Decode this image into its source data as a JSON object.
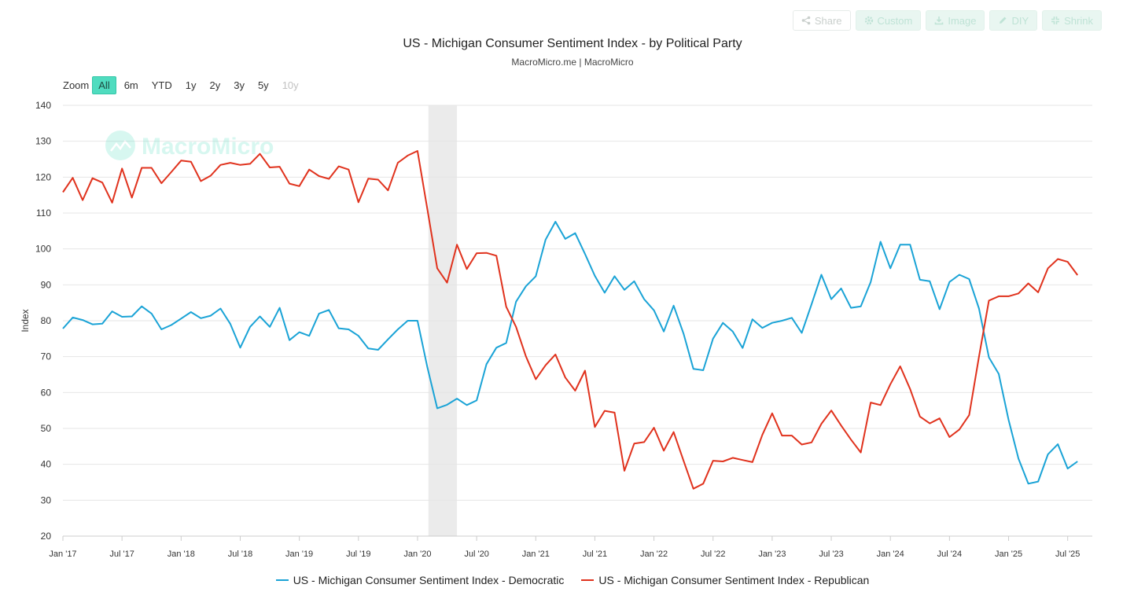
{
  "toolbar": {
    "share": "Share",
    "custom": "Custom",
    "image": "Image",
    "diy": "DIY",
    "shrink": "Shrink"
  },
  "zoom": {
    "label": "Zoom",
    "buttons": [
      "All",
      "6m",
      "YTD",
      "1y",
      "2y",
      "3y",
      "5y",
      "10y"
    ],
    "selected": "All",
    "disabled": [
      "10y"
    ]
  },
  "watermark": "MacroMicro",
  "colors": {
    "democratic": "#1aa3d6",
    "republican": "#e0321d",
    "recession": "#ebebeb",
    "grid": "#e6e6e6",
    "zoom_active": "#4fdcbf"
  },
  "chart_data": {
    "type": "line",
    "title": "US - Michigan Consumer Sentiment Index - by Political Party",
    "subtitle": "MacroMicro.me | MacroMicro",
    "ylabel": "Index",
    "xlabel": "",
    "ylim": [
      20,
      140
    ],
    "yticks": [
      20,
      30,
      40,
      50,
      60,
      70,
      80,
      90,
      100,
      110,
      120,
      130,
      140
    ],
    "xticks": [
      {
        "label": "Jan '17",
        "t": 0
      },
      {
        "label": "Jul '17",
        "t": 6
      },
      {
        "label": "Jan '18",
        "t": 12
      },
      {
        "label": "Jul '18",
        "t": 18
      },
      {
        "label": "Jan '19",
        "t": 24
      },
      {
        "label": "Jul '19",
        "t": 30
      },
      {
        "label": "Jan '20",
        "t": 36
      },
      {
        "label": "Jul '20",
        "t": 42
      },
      {
        "label": "Jan '21",
        "t": 48
      },
      {
        "label": "Jul '21",
        "t": 54
      },
      {
        "label": "Jan '22",
        "t": 60
      },
      {
        "label": "Jul '22",
        "t": 66
      },
      {
        "label": "Jan '23",
        "t": 72
      },
      {
        "label": "Jul '23",
        "t": 78
      },
      {
        "label": "Jan '24",
        "t": 84
      },
      {
        "label": "Jul '24",
        "t": 90
      },
      {
        "label": "Jan '25",
        "t": 96
      },
      {
        "label": "Jul '25",
        "t": 102
      }
    ],
    "x_range_months": [
      0,
      104.5
    ],
    "start_month": "2017-01",
    "recession_band": {
      "from": 37.1,
      "to": 40.0
    },
    "series": [
      {
        "name": "US - Michigan Consumer Sentiment Index - Democratic",
        "color": "#1aa3d6",
        "values": [
          77.8,
          80.9,
          80.2,
          79.0,
          79.2,
          82.6,
          81.1,
          81.2,
          84.0,
          82.0,
          77.6,
          78.8,
          80.6,
          82.4,
          80.7,
          81.4,
          83.4,
          79.1,
          72.5,
          78.3,
          81.2,
          78.3,
          83.6,
          74.6,
          76.8,
          75.8,
          82.0,
          83.0,
          77.9,
          77.6,
          75.8,
          72.3,
          71.9,
          74.8,
          77.6,
          80.0,
          80.0,
          67.0,
          55.6,
          56.6,
          58.3,
          56.5,
          57.8,
          67.9,
          72.5,
          73.8,
          85.3,
          89.6,
          92.4,
          102.6,
          107.6,
          102.8,
          104.4,
          98.6,
          92.5,
          87.8,
          92.4,
          88.6,
          91.0,
          86.0,
          82.9,
          77.0,
          84.2,
          76.4,
          66.6,
          66.2,
          75.0,
          79.4,
          77.0,
          72.4,
          80.4,
          78.0,
          79.4,
          80.0,
          80.8,
          76.6,
          84.6,
          92.8,
          86.0,
          89.0,
          83.6,
          84.0,
          90.8,
          102.0,
          94.6,
          101.2,
          101.2,
          91.4,
          91.0,
          83.2,
          90.8,
          92.8,
          91.6,
          83.4,
          69.8,
          65.2,
          52.4,
          41.6,
          34.6,
          35.2,
          42.8,
          45.6,
          38.8,
          40.8
        ]
      },
      {
        "name": "US - Michigan Consumer Sentiment Index - Republican",
        "color": "#e0321d",
        "values": [
          115.8,
          119.8,
          113.6,
          119.7,
          118.5,
          112.9,
          122.4,
          114.3,
          122.6,
          122.6,
          118.3,
          121.4,
          124.6,
          124.3,
          118.9,
          120.4,
          123.4,
          124.0,
          123.4,
          123.7,
          126.5,
          122.7,
          122.9,
          118.2,
          117.5,
          122.1,
          120.3,
          119.5,
          123.0,
          122.1,
          113.0,
          119.6,
          119.3,
          116.3,
          124.0,
          126.0,
          127.3,
          111.0,
          94.6,
          90.6,
          101.2,
          94.4,
          98.8,
          98.9,
          98.1,
          83.9,
          78.3,
          70.1,
          63.7,
          67.6,
          70.6,
          64.2,
          60.5,
          66.1,
          50.4,
          54.9,
          54.4,
          38.2,
          45.8,
          46.2,
          50.2,
          43.8,
          49.0,
          41.0,
          33.2,
          34.6,
          41.0,
          40.8,
          41.8,
          41.2,
          40.6,
          48.2,
          54.2,
          48.0,
          48.0,
          45.5,
          46.1,
          51.3,
          55.0,
          50.8,
          46.9,
          43.3,
          57.2,
          56.5,
          62.3,
          67.3,
          61.0,
          53.3,
          51.4,
          52.8,
          47.6,
          49.7,
          53.7,
          70.0,
          85.6,
          86.8,
          86.8,
          87.6,
          90.4,
          87.9,
          94.6,
          97.2,
          96.4,
          92.7
        ]
      }
    ]
  }
}
